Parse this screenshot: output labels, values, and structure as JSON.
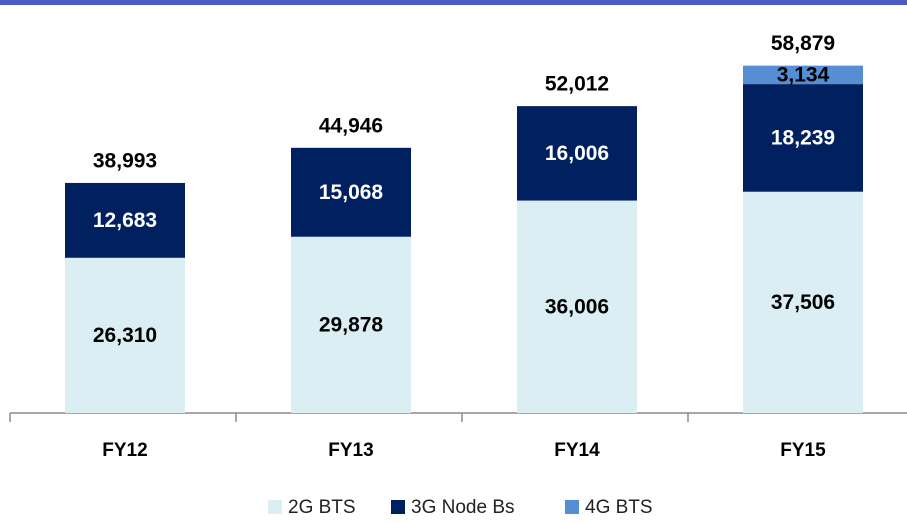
{
  "chart_data": {
    "type": "stacked_bar",
    "categories": [
      "FY12",
      "FY13",
      "FY14",
      "FY15"
    ],
    "series": [
      {
        "name": "2G BTS",
        "color": "#daeef3",
        "label_color": "#000000",
        "values": [
          26310,
          29878,
          36006,
          37506
        ],
        "value_labels": [
          "26,310",
          "29,878",
          "36,006",
          "37,506"
        ]
      },
      {
        "name": "3G Node Bs",
        "color": "#002060",
        "label_color": "#ffffff",
        "values": [
          12683,
          15068,
          16006,
          18239
        ],
        "value_labels": [
          "12,683",
          "15,068",
          "16,006",
          "18,239"
        ]
      },
      {
        "name": "4G BTS",
        "color": "#558ed5",
        "label_color": "#000000",
        "values": [
          null,
          null,
          null,
          3134
        ],
        "value_labels": [
          null,
          null,
          null,
          "3,134"
        ]
      }
    ],
    "totals": [
      38993,
      44946,
      52012,
      58879
    ],
    "total_labels": [
      "38,993",
      "44,946",
      "52,012",
      "58,879"
    ],
    "ylim": [
      0,
      70000
    ],
    "legend": "bottom"
  }
}
